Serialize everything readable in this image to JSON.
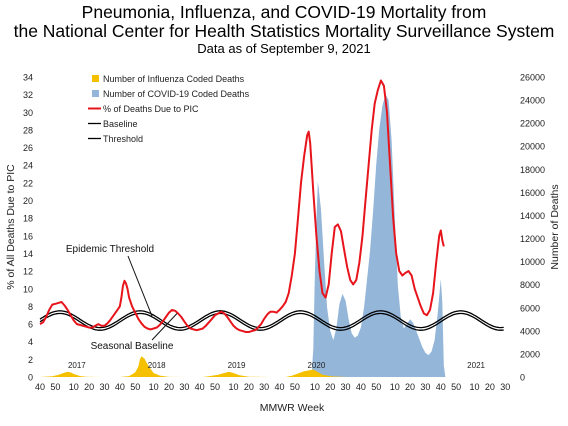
{
  "chart_data": {
    "type": "area",
    "title": "Pneumonia, Influenza, and COVID-19 Mortality from",
    "title_line2": "the National Center for Health Statistics Mortality Surveillance System",
    "subtitle": "Data as of September 9, 2021",
    "xlabel": "MMWR Week",
    "ylabel_left": "% of All Deaths Due to PIC",
    "ylabel_right": "Number of Deaths",
    "ylim_left": [
      0,
      34
    ],
    "ylim_right": [
      0,
      26000
    ],
    "left_ticks": [
      0,
      2,
      4,
      6,
      8,
      10,
      12,
      14,
      16,
      18,
      20,
      22,
      24,
      26,
      28,
      30,
      32,
      34
    ],
    "right_ticks": [
      0,
      2000,
      4000,
      6000,
      8000,
      10000,
      12000,
      14000,
      16000,
      18000,
      20000,
      22000,
      24000,
      26000
    ],
    "x_tick_labels": [
      "40",
      "50",
      "10",
      "20",
      "30",
      "40",
      "50",
      "10",
      "20",
      "30",
      "40",
      "50",
      "10",
      "20",
      "30",
      "40",
      "50",
      "10",
      "20",
      "30",
      "40",
      "50",
      "10",
      "20",
      "30",
      "40",
      "50",
      "10",
      "20",
      "30"
    ],
    "x_tick_weeks": [
      0,
      10,
      22,
      32,
      42,
      52,
      62,
      74,
      84,
      94,
      104,
      114,
      126,
      136,
      146,
      156,
      166,
      179,
      189,
      199,
      209,
      219,
      231,
      241,
      251,
      261,
      271,
      283,
      293,
      303
    ],
    "year_labels": [
      {
        "label": "2017",
        "week": 24
      },
      {
        "label": "2018",
        "week": 76
      },
      {
        "label": "2019",
        "week": 128
      },
      {
        "label": "2020",
        "week": 180
      },
      {
        "label": "2021",
        "week": 284
      }
    ],
    "annotations": [
      {
        "text": "Epidemic Threshold",
        "x_week": 62,
        "y_pct": 14
      },
      {
        "text": "Seasonal Baseline",
        "x_week": 60,
        "y_pct": 3.5
      }
    ],
    "legend_position": "top-left",
    "legend": [
      "Number of Influenza Coded Deaths",
      "Number of COVID-19 Coded Deaths",
      "% of Deaths Due to PIC",
      "Baseline",
      "Threshold"
    ],
    "colors": {
      "influenza": "#f5c000",
      "covid": "#94b6d9",
      "pic": "#e8141c",
      "baseline": "#000000",
      "threshold": "#000000"
    },
    "series": [
      {
        "name": "Number of Influenza Coded Deaths",
        "axis": "right",
        "points": [
          [
            0,
            0
          ],
          [
            8,
            60
          ],
          [
            12,
            180
          ],
          [
            16,
            380
          ],
          [
            18,
            450
          ],
          [
            20,
            400
          ],
          [
            22,
            260
          ],
          [
            26,
            90
          ],
          [
            30,
            20
          ],
          [
            40,
            0
          ],
          [
            52,
            0
          ],
          [
            58,
            80
          ],
          [
            62,
            400
          ],
          [
            64,
            900
          ],
          [
            65,
            1500
          ],
          [
            66,
            1800
          ],
          [
            68,
            1600
          ],
          [
            70,
            1100
          ],
          [
            72,
            700
          ],
          [
            74,
            350
          ],
          [
            78,
            120
          ],
          [
            84,
            10
          ],
          [
            96,
            0
          ],
          [
            106,
            0
          ],
          [
            110,
            60
          ],
          [
            116,
            200
          ],
          [
            120,
            350
          ],
          [
            123,
            450
          ],
          [
            126,
            350
          ],
          [
            130,
            150
          ],
          [
            136,
            30
          ],
          [
            150,
            0
          ],
          [
            160,
            0
          ],
          [
            164,
            100
          ],
          [
            168,
            300
          ],
          [
            172,
            500
          ],
          [
            176,
            600
          ],
          [
            178,
            650
          ],
          [
            180,
            500
          ],
          [
            184,
            200
          ],
          [
            190,
            50
          ],
          [
            200,
            0
          ],
          [
            310,
            0
          ]
        ]
      },
      {
        "name": "Number of COVID-19 Coded Deaths",
        "axis": "right",
        "points": [
          [
            175,
            0
          ],
          [
            177,
            400
          ],
          [
            178,
            2500
          ],
          [
            179,
            9000
          ],
          [
            180,
            13500
          ],
          [
            181,
            17000
          ],
          [
            183,
            14500
          ],
          [
            185,
            10000
          ],
          [
            187,
            6000
          ],
          [
            189,
            4000
          ],
          [
            191,
            3200
          ],
          [
            193,
            4200
          ],
          [
            195,
            6300
          ],
          [
            197,
            7200
          ],
          [
            199,
            6600
          ],
          [
            201,
            5000
          ],
          [
            203,
            3800
          ],
          [
            205,
            3400
          ],
          [
            207,
            3600
          ],
          [
            209,
            4300
          ],
          [
            211,
            6000
          ],
          [
            213,
            8500
          ],
          [
            215,
            11000
          ],
          [
            217,
            14500
          ],
          [
            219,
            18500
          ],
          [
            221,
            21500
          ],
          [
            223,
            23500
          ],
          [
            225,
            24500
          ],
          [
            227,
            24000
          ],
          [
            229,
            20500
          ],
          [
            231,
            14000
          ],
          [
            233,
            8000
          ],
          [
            235,
            5200
          ],
          [
            237,
            4200
          ],
          [
            239,
            4600
          ],
          [
            241,
            5000
          ],
          [
            243,
            4700
          ],
          [
            245,
            4000
          ],
          [
            247,
            3300
          ],
          [
            249,
            2600
          ],
          [
            251,
            2100
          ],
          [
            253,
            1900
          ],
          [
            255,
            2200
          ],
          [
            257,
            3200
          ],
          [
            259,
            5500
          ],
          [
            261,
            8500
          ],
          [
            262,
            6500
          ],
          [
            263,
            1000
          ],
          [
            264,
            0
          ]
        ]
      },
      {
        "name": "% of Deaths Due to PIC",
        "axis": "left",
        "points": [
          [
            0,
            6.0
          ],
          [
            2,
            6.2
          ],
          [
            4,
            6.8
          ],
          [
            6,
            7.6
          ],
          [
            8,
            8.2
          ],
          [
            10,
            8.3
          ],
          [
            12,
            8.4
          ],
          [
            14,
            8.5
          ],
          [
            16,
            8.1
          ],
          [
            18,
            7.6
          ],
          [
            20,
            7.0
          ],
          [
            22,
            6.4
          ],
          [
            24,
            6.0
          ],
          [
            26,
            5.9
          ],
          [
            28,
            5.8
          ],
          [
            30,
            5.7
          ],
          [
            32,
            5.6
          ],
          [
            34,
            5.6
          ],
          [
            36,
            5.8
          ],
          [
            38,
            6.0
          ],
          [
            40,
            5.8
          ],
          [
            42,
            5.8
          ],
          [
            44,
            6.1
          ],
          [
            46,
            6.5
          ],
          [
            48,
            7.0
          ],
          [
            50,
            7.5
          ],
          [
            52,
            8.0
          ],
          [
            53,
            9.0
          ],
          [
            54,
            10.3
          ],
          [
            55,
            10.9
          ],
          [
            56,
            10.6
          ],
          [
            57,
            10.0
          ],
          [
            58,
            9.0
          ],
          [
            60,
            8.0
          ],
          [
            62,
            7.3
          ],
          [
            64,
            6.6
          ],
          [
            66,
            6.1
          ],
          [
            68,
            5.7
          ],
          [
            70,
            5.5
          ],
          [
            72,
            5.4
          ],
          [
            74,
            5.5
          ],
          [
            76,
            5.6
          ],
          [
            78,
            5.9
          ],
          [
            80,
            6.3
          ],
          [
            82,
            6.8
          ],
          [
            84,
            7.3
          ],
          [
            86,
            7.6
          ],
          [
            88,
            7.5
          ],
          [
            90,
            7.2
          ],
          [
            92,
            6.8
          ],
          [
            94,
            6.3
          ],
          [
            96,
            5.8
          ],
          [
            98,
            5.5
          ],
          [
            100,
            5.4
          ],
          [
            102,
            5.3
          ],
          [
            104,
            5.4
          ],
          [
            106,
            5.5
          ],
          [
            108,
            5.8
          ],
          [
            110,
            6.2
          ],
          [
            112,
            6.6
          ],
          [
            114,
            7.0
          ],
          [
            116,
            7.2
          ],
          [
            118,
            7.4
          ],
          [
            120,
            7.2
          ],
          [
            122,
            6.8
          ],
          [
            124,
            6.3
          ],
          [
            126,
            5.8
          ],
          [
            128,
            5.5
          ],
          [
            130,
            5.3
          ],
          [
            132,
            5.2
          ],
          [
            134,
            5.1
          ],
          [
            136,
            5.1
          ],
          [
            138,
            5.2
          ],
          [
            140,
            5.3
          ],
          [
            142,
            5.6
          ],
          [
            144,
            6.0
          ],
          [
            146,
            6.6
          ],
          [
            148,
            7.1
          ],
          [
            150,
            7.4
          ],
          [
            152,
            7.4
          ],
          [
            154,
            7.3
          ],
          [
            156,
            7.6
          ],
          [
            158,
            8.0
          ],
          [
            160,
            8.5
          ],
          [
            162,
            9.5
          ],
          [
            164,
            11.5
          ],
          [
            166,
            14
          ],
          [
            168,
            18
          ],
          [
            170,
            22
          ],
          [
            172,
            25
          ],
          [
            174,
            27.4
          ],
          [
            175,
            27.8
          ],
          [
            176,
            26.5
          ],
          [
            178,
            21
          ],
          [
            180,
            16
          ],
          [
            182,
            12
          ],
          [
            184,
            9.5
          ],
          [
            186,
            9.0
          ],
          [
            188,
            10.5
          ],
          [
            190,
            14
          ],
          [
            192,
            17
          ],
          [
            194,
            17.3
          ],
          [
            196,
            16.5
          ],
          [
            198,
            14.5
          ],
          [
            200,
            12.5
          ],
          [
            202,
            11.0
          ],
          [
            204,
            10.5
          ],
          [
            206,
            11.0
          ],
          [
            208,
            13
          ],
          [
            210,
            16
          ],
          [
            212,
            20
          ],
          [
            214,
            24
          ],
          [
            216,
            28
          ],
          [
            218,
            31
          ],
          [
            220,
            32.5
          ],
          [
            222,
            33.6
          ],
          [
            224,
            33
          ],
          [
            226,
            30
          ],
          [
            228,
            24
          ],
          [
            230,
            18
          ],
          [
            232,
            14
          ],
          [
            234,
            12
          ],
          [
            236,
            11.5
          ],
          [
            238,
            11.8
          ],
          [
            240,
            12.0
          ],
          [
            242,
            11.5
          ],
          [
            244,
            10.0
          ],
          [
            246,
            9.0
          ],
          [
            248,
            8.0
          ],
          [
            250,
            7.2
          ],
          [
            252,
            7.0
          ],
          [
            254,
            7.6
          ],
          [
            256,
            9.5
          ],
          [
            258,
            13
          ],
          [
            260,
            16
          ],
          [
            261,
            16.6
          ],
          [
            262,
            15.5
          ],
          [
            263,
            14.8
          ]
        ]
      },
      {
        "name": "Baseline",
        "axis": "left",
        "model": {
          "mean": 6.25,
          "amplitude": 0.95,
          "period_weeks": 52.2,
          "peak_week": 13
        }
      },
      {
        "name": "Threshold",
        "axis": "left",
        "model": {
          "mean": 6.55,
          "amplitude": 0.95,
          "period_weeks": 52.2,
          "peak_week": 13
        }
      }
    ]
  }
}
